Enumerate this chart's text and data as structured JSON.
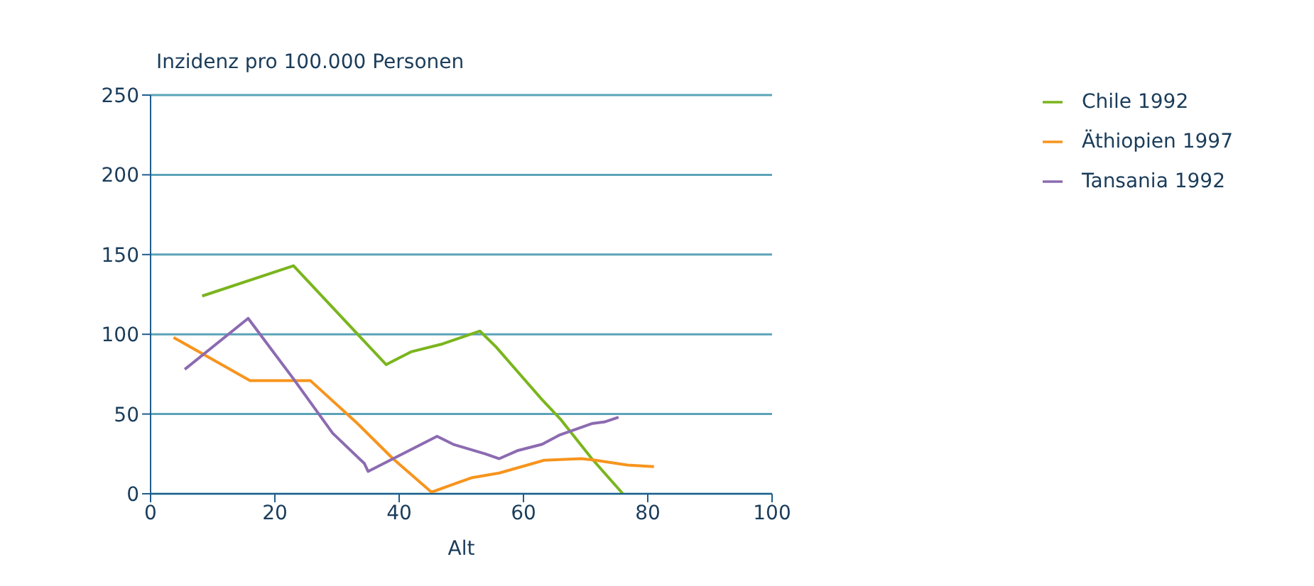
{
  "chart_data": {
    "type": "line",
    "ylabel": "Inzidenz pro 100.000 Personen",
    "xlabel": "Alt",
    "xlim": [
      0,
      100
    ],
    "xticks": [
      0,
      20,
      40,
      60,
      80,
      100
    ],
    "ylim": [
      0,
      250
    ],
    "yticks": [
      0,
      50,
      100,
      150,
      200,
      250
    ],
    "grid": "y",
    "legend": "top right",
    "marker": "none",
    "line_style": "solid",
    "series": [
      {
        "name": "Chile 1992",
        "color": "#7ab51d",
        "x": [
          8.3,
          23,
          37.9,
          41.9,
          47,
          53,
          55.6,
          63,
          65.9,
          71,
          76
        ],
        "values": [
          124,
          143,
          81,
          89,
          94,
          102,
          92,
          59,
          47,
          22,
          0
        ]
      },
      {
        "name": "Äthiopien 1997",
        "color": "#f7941d",
        "x": [
          3.7,
          16,
          25.7,
          33.3,
          39,
          45.2,
          48.7,
          51.6,
          56.1,
          63.3,
          69.3,
          71.6,
          76.7,
          81
        ],
        "values": [
          98,
          71,
          71,
          44,
          22,
          1,
          6,
          10,
          13,
          21,
          22,
          21,
          18,
          17
        ]
      },
      {
        "name": "Tansania 1992",
        "color": "#8c6bb1",
        "x": [
          5.5,
          15.7,
          23,
          29.3,
          34.4,
          35,
          46.1,
          48.7,
          53.9,
          56.1,
          59,
          63,
          65.9,
          71,
          73,
          75.3
        ],
        "values": [
          78,
          110,
          72,
          38,
          19,
          14,
          36,
          31,
          25,
          22,
          27,
          31,
          37,
          44,
          45,
          48
        ]
      }
    ]
  }
}
